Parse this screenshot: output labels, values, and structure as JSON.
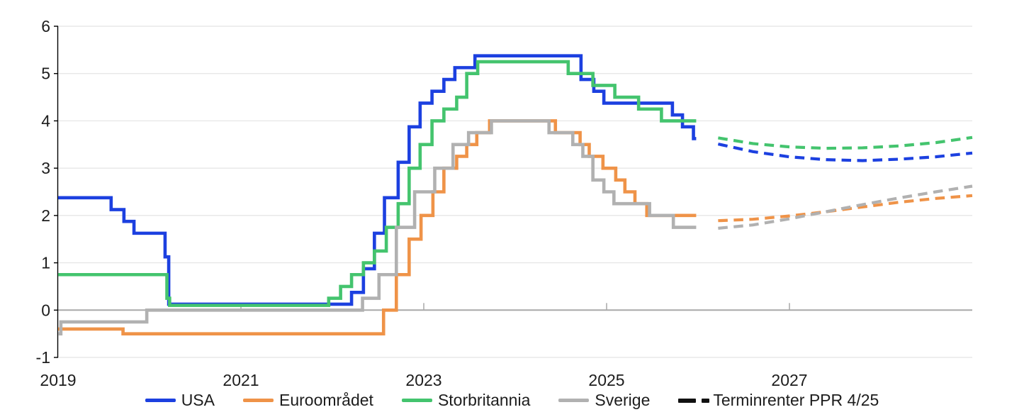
{
  "colors": {
    "usa": "#1c40e0",
    "euro": "#ef9348",
    "uk": "#44c46e",
    "sweden": "#b1b1b1",
    "forwards": "#111111",
    "grid": "#e4e4e4",
    "zero_line": "#a9a9a9",
    "axis": "#000000",
    "text": "#1d1d1d"
  },
  "axes": {
    "y": {
      "ticks": [
        {
          "value": 6,
          "label": "6"
        },
        {
          "value": 5,
          "label": "5"
        },
        {
          "value": 4,
          "label": "4"
        },
        {
          "value": 3,
          "label": "3"
        },
        {
          "value": 2,
          "label": "2"
        },
        {
          "value": 1,
          "label": "1"
        },
        {
          "value": 0,
          "label": "0"
        },
        {
          "value": -1,
          "label": "-1"
        }
      ]
    },
    "x": {
      "ticks": [
        {
          "year": 2019,
          "label": "2019"
        },
        {
          "year": 2021,
          "label": "2021"
        },
        {
          "year": 2023,
          "label": "2023"
        },
        {
          "year": 2025,
          "label": "2025"
        },
        {
          "year": 2027,
          "label": "2027"
        }
      ]
    }
  },
  "legend": {
    "items": [
      {
        "key": "usa",
        "label": "USA"
      },
      {
        "key": "euro",
        "label": "Euroområdet"
      },
      {
        "key": "uk",
        "label": "Storbritannia"
      },
      {
        "key": "sweden",
        "label": "Sverige"
      },
      {
        "key": "forwards",
        "label": "Terminrenter PPR 4/25"
      }
    ]
  },
  "chart_data": {
    "type": "line",
    "subtype": "step-policy-rates",
    "title": "",
    "xlabel": "",
    "ylabel": "",
    "xlim": [
      2019,
      2029.0
    ],
    "ylim": [
      -1,
      6
    ],
    "grid": true,
    "legend_position": "bottom",
    "series": [
      {
        "key": "usa",
        "name": "USA",
        "style": "step",
        "end": 2025.98,
        "points": [
          [
            2019.0,
            2.375
          ],
          [
            2019.58,
            2.125
          ],
          [
            2019.72,
            1.875
          ],
          [
            2019.83,
            1.625
          ],
          [
            2020.17,
            1.125
          ],
          [
            2020.21,
            0.125
          ],
          [
            2022.21,
            0.375
          ],
          [
            2022.34,
            0.875
          ],
          [
            2022.46,
            1.625
          ],
          [
            2022.57,
            2.375
          ],
          [
            2022.72,
            3.125
          ],
          [
            2022.84,
            3.875
          ],
          [
            2022.96,
            4.375
          ],
          [
            2023.09,
            4.625
          ],
          [
            2023.22,
            4.875
          ],
          [
            2023.34,
            5.125
          ],
          [
            2023.56,
            5.375
          ],
          [
            2024.72,
            4.875
          ],
          [
            2024.86,
            4.625
          ],
          [
            2024.97,
            4.375
          ],
          [
            2025.72,
            4.125
          ],
          [
            2025.83,
            3.875
          ],
          [
            2025.95,
            3.625
          ]
        ]
      },
      {
        "key": "euro",
        "name": "Euroområdet",
        "style": "step",
        "end": 2025.98,
        "points": [
          [
            2019.0,
            -0.4
          ],
          [
            2019.71,
            -0.5
          ],
          [
            2022.56,
            0.0
          ],
          [
            2022.7,
            0.75
          ],
          [
            2022.84,
            1.5
          ],
          [
            2022.97,
            2.0
          ],
          [
            2023.1,
            2.5
          ],
          [
            2023.22,
            3.0
          ],
          [
            2023.36,
            3.25
          ],
          [
            2023.47,
            3.5
          ],
          [
            2023.58,
            3.75
          ],
          [
            2023.72,
            4.0
          ],
          [
            2024.44,
            3.75
          ],
          [
            2024.71,
            3.5
          ],
          [
            2024.81,
            3.25
          ],
          [
            2024.96,
            3.0
          ],
          [
            2025.1,
            2.75
          ],
          [
            2025.2,
            2.5
          ],
          [
            2025.31,
            2.25
          ],
          [
            2025.44,
            2.0
          ]
        ]
      },
      {
        "key": "uk",
        "name": "Storbritannia",
        "style": "step",
        "end": 2025.98,
        "points": [
          [
            2019.0,
            0.75
          ],
          [
            2020.19,
            0.25
          ],
          [
            2020.22,
            0.1
          ],
          [
            2021.96,
            0.25
          ],
          [
            2022.09,
            0.5
          ],
          [
            2022.21,
            0.75
          ],
          [
            2022.34,
            1.0
          ],
          [
            2022.46,
            1.25
          ],
          [
            2022.59,
            1.75
          ],
          [
            2022.72,
            2.25
          ],
          [
            2022.84,
            3.0
          ],
          [
            2022.96,
            3.5
          ],
          [
            2023.09,
            4.0
          ],
          [
            2023.22,
            4.25
          ],
          [
            2023.36,
            4.5
          ],
          [
            2023.47,
            5.0
          ],
          [
            2023.59,
            5.25
          ],
          [
            2024.58,
            5.0
          ],
          [
            2024.85,
            4.75
          ],
          [
            2025.09,
            4.5
          ],
          [
            2025.35,
            4.25
          ],
          [
            2025.6,
            4.0
          ]
        ]
      },
      {
        "key": "sweden",
        "name": "Sverige",
        "style": "step",
        "end": 2025.98,
        "points": [
          [
            2019.0,
            -0.5
          ],
          [
            2019.03,
            -0.25
          ],
          [
            2019.97,
            0.0
          ],
          [
            2022.33,
            0.25
          ],
          [
            2022.51,
            0.75
          ],
          [
            2022.7,
            1.75
          ],
          [
            2022.9,
            2.5
          ],
          [
            2023.12,
            3.0
          ],
          [
            2023.32,
            3.5
          ],
          [
            2023.49,
            3.75
          ],
          [
            2023.74,
            4.0
          ],
          [
            2024.37,
            3.75
          ],
          [
            2024.63,
            3.5
          ],
          [
            2024.74,
            3.25
          ],
          [
            2024.85,
            2.75
          ],
          [
            2024.97,
            2.5
          ],
          [
            2025.08,
            2.25
          ],
          [
            2025.47,
            2.0
          ],
          [
            2025.73,
            1.75
          ]
        ]
      }
    ],
    "forwards": {
      "label": "Terminrenter PPR 4/25",
      "style": "dashed",
      "series": [
        {
          "key": "usa",
          "points": [
            [
              2026.22,
              3.51
            ],
            [
              2026.6,
              3.35
            ],
            [
              2027.0,
              3.24
            ],
            [
              2027.4,
              3.18
            ],
            [
              2027.8,
              3.16
            ],
            [
              2028.2,
              3.19
            ],
            [
              2028.6,
              3.24
            ],
            [
              2029.0,
              3.32
            ]
          ]
        },
        {
          "key": "euro",
          "points": [
            [
              2026.22,
              1.89
            ],
            [
              2026.6,
              1.92
            ],
            [
              2027.0,
              1.99
            ],
            [
              2027.4,
              2.08
            ],
            [
              2027.8,
              2.18
            ],
            [
              2028.2,
              2.28
            ],
            [
              2028.6,
              2.36
            ],
            [
              2029.0,
              2.42
            ]
          ]
        },
        {
          "key": "uk",
          "points": [
            [
              2026.22,
              3.64
            ],
            [
              2026.6,
              3.52
            ],
            [
              2027.0,
              3.45
            ],
            [
              2027.4,
              3.42
            ],
            [
              2027.8,
              3.43
            ],
            [
              2028.2,
              3.47
            ],
            [
              2028.6,
              3.54
            ],
            [
              2029.0,
              3.65
            ]
          ]
        },
        {
          "key": "sweden",
          "points": [
            [
              2026.22,
              1.73
            ],
            [
              2026.6,
              1.8
            ],
            [
              2027.0,
              1.93
            ],
            [
              2027.4,
              2.08
            ],
            [
              2027.8,
              2.23
            ],
            [
              2028.2,
              2.37
            ],
            [
              2028.6,
              2.5
            ],
            [
              2029.0,
              2.62
            ]
          ]
        }
      ]
    }
  }
}
